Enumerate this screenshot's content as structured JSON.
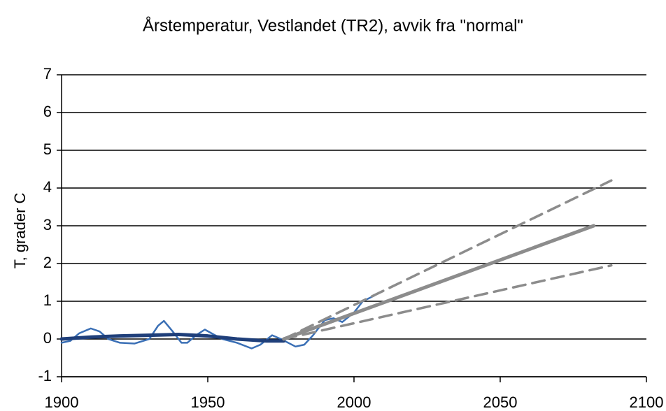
{
  "chart_data": {
    "type": "line",
    "title": "Årstemperatur, Vestlandet (TR2), avvik fra \"normal\"",
    "y_label": "T, grader C",
    "xlim": [
      1900,
      2100
    ],
    "xticks": [
      1900,
      1950,
      2000,
      2050,
      2100
    ],
    "ylim": [
      -1,
      7
    ],
    "yticks": [
      -1,
      0,
      1,
      2,
      3,
      4,
      5,
      6,
      7
    ],
    "grid": true,
    "series": [
      {
        "color": "#3a6fb5",
        "width": 2.5,
        "dashed": false,
        "x": [
          1900,
          1903,
          1906,
          1910,
          1913,
          1916,
          1920,
          1925,
          1930,
          1933,
          1935,
          1938,
          1941,
          1943,
          1946,
          1949,
          1952,
          1955,
          1960,
          1965,
          1968,
          1972,
          1975,
          1980,
          1983,
          1986,
          1990,
          1993,
          1996,
          2000,
          2003,
          2007
        ],
        "values": [
          -0.1,
          -0.05,
          0.15,
          0.28,
          0.2,
          0.0,
          -0.1,
          -0.12,
          0.0,
          0.35,
          0.48,
          0.2,
          -0.1,
          -0.1,
          0.1,
          0.25,
          0.12,
          0.0,
          -0.1,
          -0.25,
          -0.15,
          0.1,
          0.0,
          -0.2,
          -0.15,
          0.1,
          0.5,
          0.55,
          0.45,
          0.7,
          1.0,
          1.15
        ]
      },
      {
        "color": "#1f3f7a",
        "width": 5,
        "dashed": false,
        "x": [
          1900,
          1910,
          1920,
          1930,
          1940,
          1950,
          1960,
          1970,
          1976
        ],
        "values": [
          0.0,
          0.05,
          0.08,
          0.1,
          0.12,
          0.08,
          0.0,
          -0.05,
          -0.05
        ]
      },
      {
        "color": "#8c8c8c",
        "width": 5,
        "dashed": false,
        "x": [
          1976,
          2082
        ],
        "values": [
          0.0,
          3.0
        ]
      },
      {
        "color": "#8c8c8c",
        "width": 3.5,
        "dashed": true,
        "x": [
          1976,
          2088
        ],
        "values": [
          0.0,
          4.2
        ]
      },
      {
        "color": "#8c8c8c",
        "width": 3.5,
        "dashed": true,
        "x": [
          1976,
          2088
        ],
        "values": [
          0.0,
          1.95
        ]
      }
    ]
  }
}
